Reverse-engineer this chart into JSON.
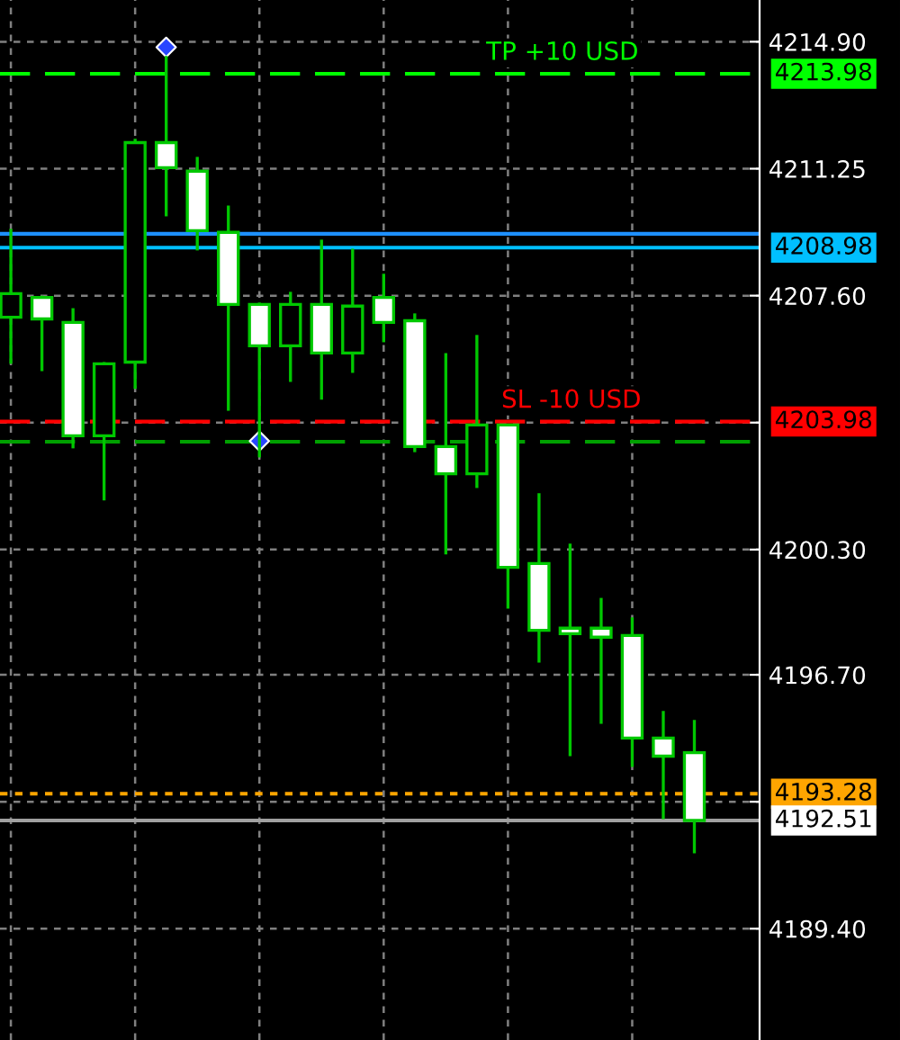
{
  "chart_data": {
    "type": "candlestick",
    "categories": [
      null,
      null,
      null,
      null,
      null,
      null,
      null,
      null,
      null,
      null,
      null,
      null,
      null,
      null,
      null,
      null,
      null,
      null,
      null,
      null,
      null,
      null,
      null
    ],
    "series": [
      {
        "type": "candlestick",
        "color": "#00c800",
        "colors": [
          "#000000",
          "#ffffff",
          "#ffffff",
          "#000000",
          "#000000",
          "#ffffff",
          "#ffffff",
          "#ffffff",
          "#ffffff",
          "#000000",
          "#ffffff",
          "#000000",
          "#ffffff",
          "#ffffff",
          "#ffffff",
          "#000000",
          "#ffffff",
          "#ffffff",
          "#ffffff",
          "#ffffff",
          "#ffffff",
          "#ffffff",
          "#ffffff"
        ],
        "ohlc": [
          [
            4206.98,
            4209.52,
            4205.64,
            4207.66
          ],
          [
            4207.55,
            4207.6,
            4205.43,
            4206.93
          ],
          [
            4206.83,
            4207.24,
            4203.21,
            4203.57
          ],
          [
            4203.57,
            4205.69,
            4201.71,
            4205.64
          ],
          [
            4205.69,
            4212.11,
            4204.92,
            4212.0
          ],
          [
            4212.0,
            4214.49,
            4209.88,
            4211.28
          ],
          [
            4211.18,
            4211.59,
            4208.9,
            4209.47
          ],
          [
            4209.42,
            4210.19,
            4204.29,
            4207.35
          ],
          [
            4207.35,
            4207.4,
            4202.95,
            4206.16
          ],
          [
            4206.16,
            4207.71,
            4205.12,
            4207.35
          ],
          [
            4207.35,
            4209.21,
            4204.61,
            4205.95
          ],
          [
            4205.95,
            4208.95,
            4205.38,
            4207.3
          ],
          [
            4207.55,
            4208.23,
            4206.26,
            4206.83
          ],
          [
            4206.88,
            4207.09,
            4203.1,
            4203.26
          ],
          [
            4203.26,
            4205.95,
            4200.16,
            4202.48
          ],
          [
            4202.48,
            4206.47,
            4202.07,
            4203.88
          ],
          [
            4203.88,
            4203.9,
            4198.6,
            4199.79
          ],
          [
            4199.9,
            4201.92,
            4197.05,
            4197.98
          ],
          [
            4198.04,
            4200.47,
            4194.36,
            4197.88
          ],
          [
            4198.04,
            4198.91,
            4195.29,
            4197.78
          ],
          [
            4197.83,
            4198.35,
            4194.05,
            4194.88
          ],
          [
            4194.88,
            4195.66,
            4192.55,
            4194.36
          ],
          [
            4194.46,
            4195.4,
            4191.57,
            4192.51
          ]
        ]
      },
      {
        "type": "scatter",
        "values": [
          null,
          null,
          null,
          null,
          null,
          4214.74,
          null,
          null,
          4203.42,
          null,
          null,
          null,
          null,
          null,
          null,
          null,
          null,
          null,
          null,
          null,
          null,
          null,
          null
        ],
        "color": "#2846ff",
        "marker": "diamond"
      }
    ],
    "ylim": [
      4186.2,
      4216.1
    ],
    "yticks": [
      {
        "value": 4214.9,
        "label": "4214.90"
      },
      {
        "value": 4211.25,
        "label": "4211.25"
      },
      {
        "value": 4207.6,
        "label": "4207.60"
      },
      {
        "value": 4203.95,
        "label": null
      },
      {
        "value": 4200.3,
        "label": "4200.30"
      },
      {
        "value": 4196.7,
        "label": "4196.70"
      },
      {
        "value": 4193.05,
        "label": null
      },
      {
        "value": 4189.4,
        "label": "4189.40"
      }
    ],
    "grid": true,
    "ref_lines": [
      {
        "axis": "y",
        "value": 4213.98,
        "label": "4213.98",
        "color": "#00ff00",
        "line_style": "dashed"
      },
      {
        "axis": "y",
        "value": 4209.38,
        "label": null,
        "color": "#1e90ff",
        "line_style": "solid"
      },
      {
        "axis": "y",
        "value": 4208.98,
        "label": "4208.98",
        "color": "#00bfff",
        "line_style": "solid"
      },
      {
        "axis": "y",
        "value": 4203.98,
        "label": "4203.98",
        "color": "#ff0000",
        "line_style": "dashed"
      },
      {
        "axis": "y",
        "value": 4203.4,
        "color": "#00a000",
        "line_style": "dashed"
      },
      {
        "axis": "y",
        "value": 4193.28,
        "label": "4193.28",
        "color": "#ffa500",
        "line_style": "dotted"
      },
      {
        "axis": "y",
        "value": 4192.51,
        "label": "4192.51",
        "color": "#a0a0a0",
        "line_style": "solid"
      }
    ],
    "annotations": [
      {
        "text": "TP +10 USD",
        "y": 4213.98
      },
      {
        "text": "SL -10 USD",
        "y": 4203.98
      }
    ]
  }
}
